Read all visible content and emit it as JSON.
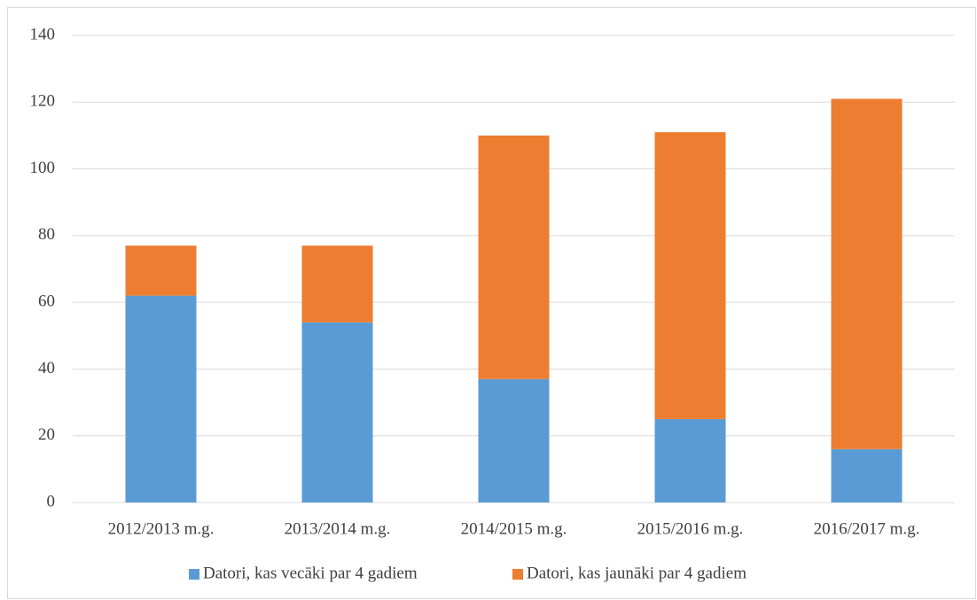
{
  "chart_data": {
    "type": "bar",
    "stacked": true,
    "categories": [
      "2012/2013 m.g.",
      "2013/2014 m.g.",
      "2014/2015 m.g.",
      "2015/2016 m.g.",
      "2016/2017 m.g."
    ],
    "series": [
      {
        "name": "Datori, kas vecāki par 4 gadiem",
        "color": "#5b9bd5",
        "values": [
          62,
          54,
          37,
          25,
          16
        ]
      },
      {
        "name": "Datori, kas jaunāki par 4 gadiem",
        "color": "#ed7d31",
        "values": [
          15,
          23,
          73,
          86,
          105
        ]
      }
    ],
    "ylim": [
      0,
      140
    ],
    "yticks": [
      0,
      20,
      40,
      60,
      80,
      100,
      120,
      140
    ],
    "grid": true,
    "legend": "bottom"
  }
}
